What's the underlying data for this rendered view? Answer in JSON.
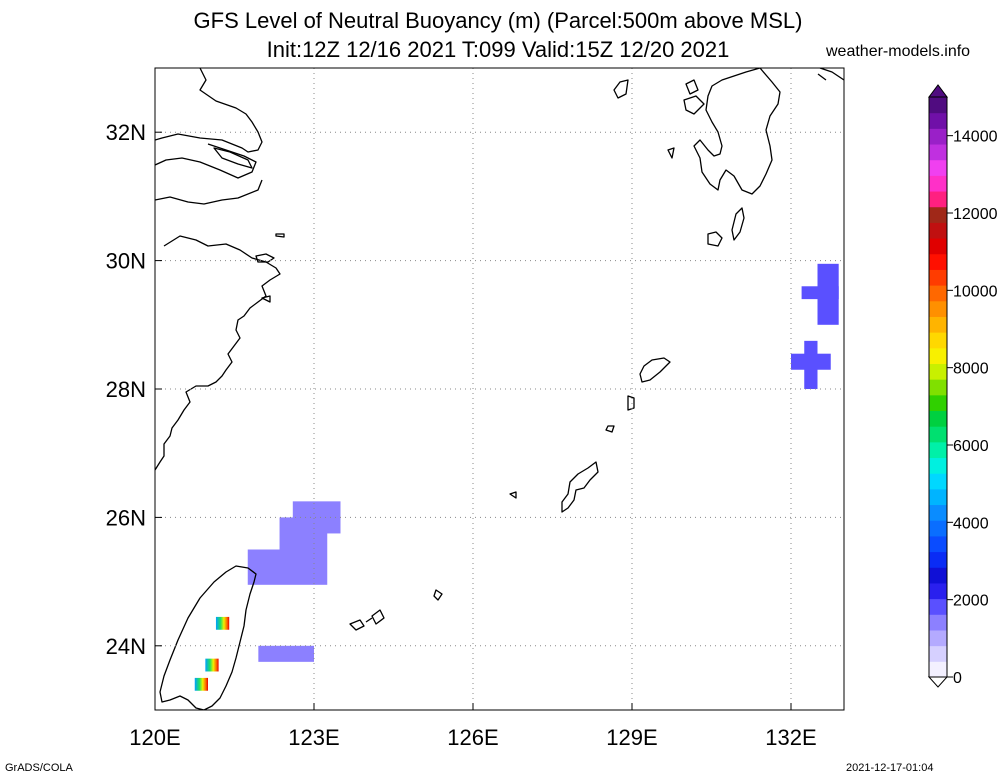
{
  "header": {
    "title_line1": "GFS Level of Neutral Buoyancy (m) (Parcel:500m above MSL)",
    "title_line2": "Init:12Z 12/16 2021 T:099 Valid:15Z 12/20 2021",
    "site": "weather-models.info"
  },
  "footer": {
    "left": "GrADS/COLA",
    "right": "2021-12-17-01:04"
  },
  "chart_data": {
    "type": "heatmap",
    "title": "GFS Level of Neutral Buoyancy (m) (Parcel:500m above MSL)",
    "subtitle": "Init:12Z 12/16 2021 T:099 Valid:15Z 12/20 2021",
    "xlim": [
      120,
      133
    ],
    "ylim": [
      23,
      33
    ],
    "x_ticks": [
      {
        "value": 120,
        "label": "120E"
      },
      {
        "value": 123,
        "label": "123E"
      },
      {
        "value": 126,
        "label": "126E"
      },
      {
        "value": 129,
        "label": "129E"
      },
      {
        "value": 132,
        "label": "132E"
      }
    ],
    "y_ticks": [
      {
        "value": 24,
        "label": "24N"
      },
      {
        "value": 26,
        "label": "26N"
      },
      {
        "value": 28,
        "label": "28N"
      },
      {
        "value": 30,
        "label": "30N"
      },
      {
        "value": 32,
        "label": "32N"
      }
    ],
    "grid": true,
    "colorbar": {
      "min": 0,
      "max": 15000,
      "ticks": [
        0,
        2000,
        4000,
        6000,
        8000,
        10000,
        12000,
        14000
      ],
      "colors": [
        "#f3f0ff",
        "#d6d0ff",
        "#b4aaff",
        "#8c80ff",
        "#5a50ff",
        "#2a20ee",
        "#1010d6",
        "#0a2cf5",
        "#0a4cff",
        "#0a6eff",
        "#0a8cff",
        "#00b4ff",
        "#00d8ff",
        "#00f0e0",
        "#00f0a8",
        "#00e070",
        "#00d040",
        "#30d000",
        "#80e000",
        "#c8f000",
        "#f8f000",
        "#ffd800",
        "#ffb400",
        "#ff9000",
        "#ff6800",
        "#ff3c00",
        "#ff1000",
        "#e00000",
        "#c01010",
        "#a02818",
        "#ff2080",
        "#ff30c8",
        "#f040f0",
        "#c030e0",
        "#9a20c8",
        "#7010a8",
        "#500c80"
      ]
    },
    "features": [
      {
        "name": "cell-east-china-sea-1",
        "lon": [
          122.6,
          123.5
        ],
        "lat": [
          25.75,
          26.25
        ],
        "value": 1400
      },
      {
        "name": "cell-east-china-sea-2",
        "lon": [
          122.35,
          123.25
        ],
        "lat": [
          25.5,
          26.0
        ],
        "value": 1600
      },
      {
        "name": "cell-east-china-sea-3",
        "lon": [
          121.75,
          123.25
        ],
        "lat": [
          24.95,
          25.5
        ],
        "value": 1500
      },
      {
        "name": "cell-taiwan-east",
        "lon": [
          121.95,
          123.0
        ],
        "lat": [
          23.75,
          24.0
        ],
        "value": 1500
      },
      {
        "name": "cell-kyushu-south-1",
        "lon": [
          132.5,
          132.9
        ],
        "lat": [
          29.0,
          29.95
        ],
        "value": 2000
      },
      {
        "name": "cell-kyushu-south-2",
        "lon": [
          132.2,
          132.9
        ],
        "lat": [
          29.4,
          29.6
        ],
        "value": 2000
      },
      {
        "name": "cell-amami-1",
        "lon": [
          132.0,
          132.75
        ],
        "lat": [
          28.3,
          28.55
        ],
        "value": 2000
      },
      {
        "name": "cell-amami-2",
        "lon": [
          132.25,
          132.5
        ],
        "lat": [
          28.0,
          28.75
        ],
        "value": 2000
      },
      {
        "name": "cell-taiwan-hot-1",
        "lon": [
          121.15,
          121.4
        ],
        "lat": [
          24.25,
          24.45
        ],
        "value": 7000
      },
      {
        "name": "cell-taiwan-hot-2",
        "lon": [
          120.95,
          121.2
        ],
        "lat": [
          23.6,
          23.8
        ],
        "value": 7000
      },
      {
        "name": "cell-taiwan-hot-3",
        "lon": [
          120.75,
          121.0
        ],
        "lat": [
          23.3,
          23.5
        ],
        "value": 7000
      }
    ]
  }
}
